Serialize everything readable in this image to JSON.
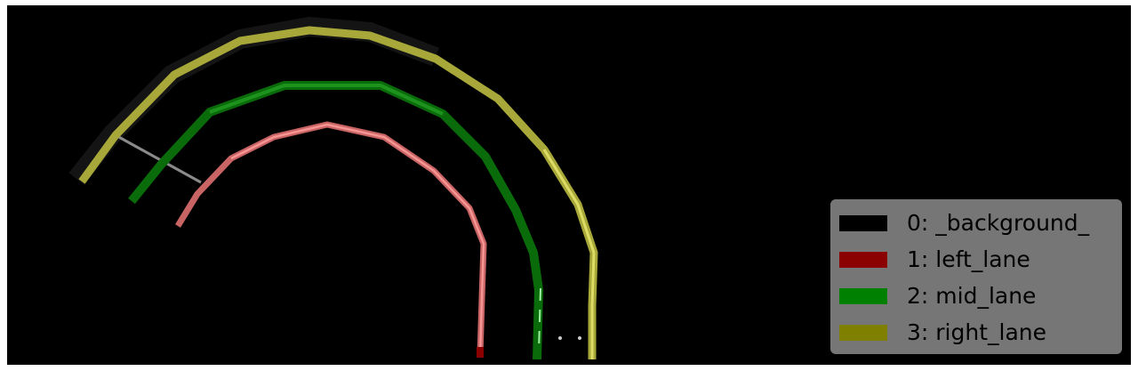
{
  "legend": {
    "items": [
      {
        "label": "0: _background_",
        "color": "#000000"
      },
      {
        "label": "1: left_lane",
        "color": "#8b0000"
      },
      {
        "label": "2: mid_lane",
        "color": "#008000"
      },
      {
        "label": "3: right_lane",
        "color": "#808000"
      }
    ]
  },
  "lanes": {
    "left_lane": {
      "stroke": "#c86464",
      "shade": "#ff9c9c"
    },
    "mid_lane": {
      "stroke": "#0a6b0a",
      "shade": "#2db42d"
    },
    "right_lane": {
      "stroke": "#a8a83a",
      "shade": "#e8e870"
    }
  }
}
